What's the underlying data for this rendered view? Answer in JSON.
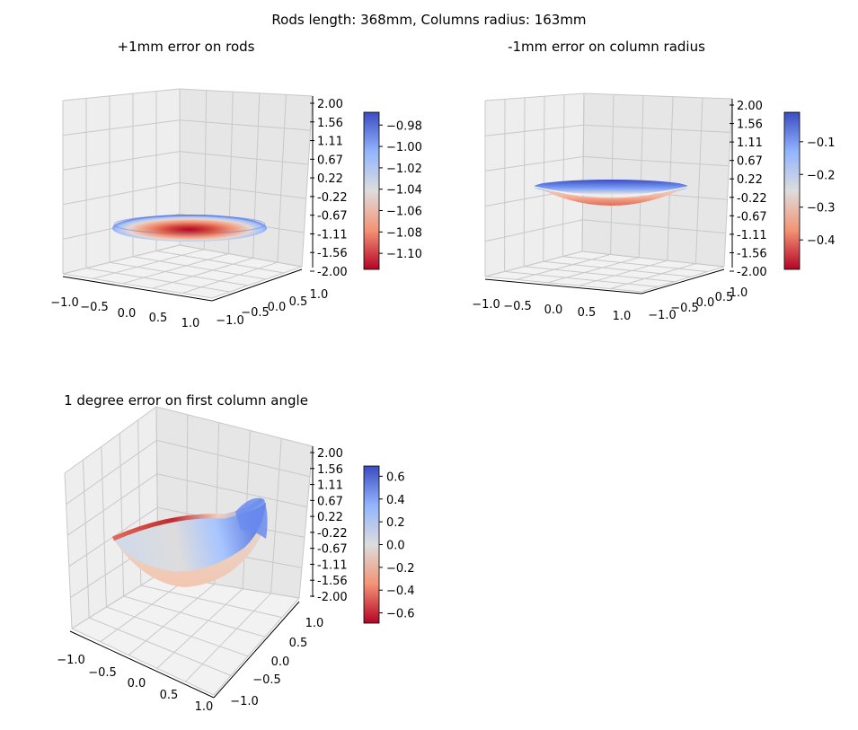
{
  "figure": {
    "title": "Rods length: 368mm, Columns radius: 163mm"
  },
  "chart_data": [
    {
      "type": "surface3d",
      "title": "+1mm error on rods",
      "xlim": [
        -1.0,
        1.0
      ],
      "ylim": [
        -1.0,
        1.0
      ],
      "zlim": [
        -2.0,
        2.0
      ],
      "x_ticks": [
        "−1.0",
        "−0.5",
        "0.0",
        "0.5",
        "1.0"
      ],
      "y_ticks": [
        "−1.0",
        "−0.5",
        "0.0",
        "0.5",
        "1.0"
      ],
      "z_ticks": [
        "2.00",
        "1.56",
        "1.11",
        "0.67",
        "0.22",
        "-0.22",
        "-0.67",
        "-1.11",
        "-1.56",
        "-2.00"
      ],
      "surface": {
        "shape": "flat-disc-bowl",
        "z_center": -1.11,
        "z_edge": -0.98
      },
      "colormap": "coolwarm",
      "colorbar": {
        "range": [
          -1.115,
          -0.968
        ],
        "ticks": [
          -0.98,
          -1.0,
          -1.02,
          -1.04,
          -1.06,
          -1.08,
          -1.1
        ],
        "tick_labels": [
          "−0.98",
          "−1.00",
          "−1.02",
          "−1.04",
          "−1.06",
          "−1.08",
          "−1.10"
        ]
      }
    },
    {
      "type": "surface3d",
      "title": "-1mm error on column radius",
      "xlim": [
        -1.0,
        1.0
      ],
      "ylim": [
        -1.0,
        1.0
      ],
      "zlim": [
        -2.0,
        2.0
      ],
      "x_ticks": [
        "−1.0",
        "−0.5",
        "0.0",
        "0.5",
        "1.0"
      ],
      "y_ticks": [
        "−1.0",
        "−0.5",
        "0.0",
        "0.5",
        "1.0"
      ],
      "z_ticks": [
        "2.00",
        "1.56",
        "1.11",
        "0.67",
        "0.22",
        "-0.22",
        "-0.67",
        "-1.11",
        "-1.56",
        "-2.00"
      ],
      "surface": {
        "shape": "shallow-bowl",
        "z_center": -0.48,
        "z_edge": 0.0
      },
      "colormap": "coolwarm",
      "colorbar": {
        "range": [
          -0.49,
          -0.01
        ],
        "ticks": [
          -0.1,
          -0.2,
          -0.3,
          -0.4
        ],
        "tick_labels": [
          "−0.1",
          "−0.2",
          "−0.3",
          "−0.4"
        ]
      }
    },
    {
      "type": "surface3d",
      "title": "1 degree error on first column angle",
      "xlim": [
        -1.0,
        1.0
      ],
      "ylim": [
        -1.0,
        1.0
      ],
      "zlim": [
        -2.0,
        2.0
      ],
      "x_ticks": [
        "−1.0",
        "−0.5",
        "0.0",
        "0.5",
        "1.0"
      ],
      "y_ticks": [
        "−1.0",
        "−0.5",
        "0.0",
        "0.5",
        "1.0"
      ],
      "z_ticks": [
        "2.00",
        "1.56",
        "1.11",
        "0.67",
        "0.22",
        "-0.22",
        "-0.67",
        "-1.11",
        "-1.56",
        "-2.00"
      ],
      "surface": {
        "shape": "tilted-disc",
        "z_min": -0.68,
        "z_max": 0.68
      },
      "colormap": "coolwarm",
      "colorbar": {
        "range": [
          -0.69,
          0.69
        ],
        "ticks": [
          0.6,
          0.4,
          0.2,
          0.0,
          -0.2,
          -0.4,
          -0.6
        ],
        "tick_labels": [
          "0.6",
          "0.4",
          "0.2",
          "0.0",
          "−0.2",
          "−0.4",
          "−0.6"
        ]
      }
    }
  ]
}
